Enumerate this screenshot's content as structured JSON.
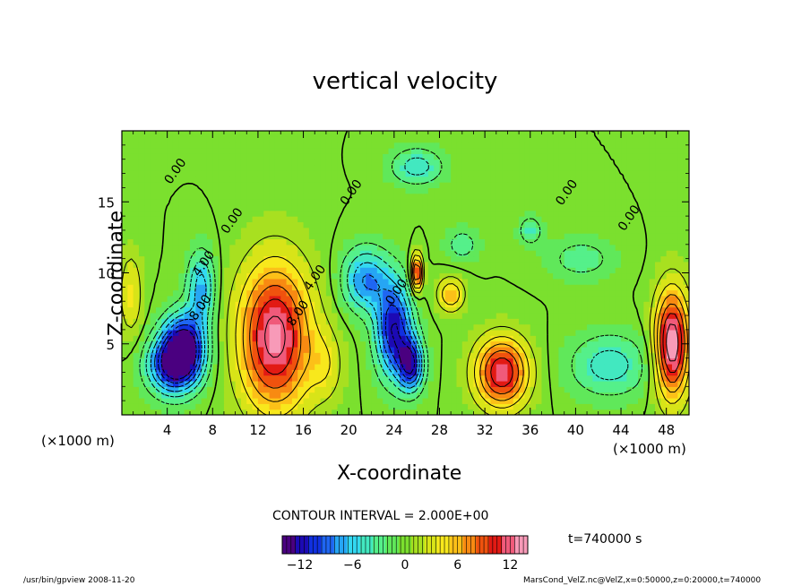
{
  "chart_data": {
    "type": "heatmap",
    "title": "vertical velocity",
    "xlabel": "X-coordinate",
    "ylabel": "Z-coordinate",
    "x_unit_left": "(×1000 m)",
    "x_unit_right": "(×1000 m)",
    "xlim": [
      0,
      50
    ],
    "ylim": [
      0,
      20
    ],
    "x_ticks": [
      4,
      8,
      12,
      16,
      20,
      24,
      28,
      32,
      36,
      40,
      44,
      48
    ],
    "y_ticks": [
      5,
      10,
      15
    ],
    "contour_interval_text": "CONTOUR INTERVAL = 2.000E+00",
    "contour_labels": [
      {
        "x": 5,
        "y": 17,
        "text": "0.00"
      },
      {
        "x": 10,
        "y": 13.5,
        "text": "0.00"
      },
      {
        "x": 20.5,
        "y": 15.5,
        "text": "0.00"
      },
      {
        "x": 39.5,
        "y": 15.5,
        "text": "0.00"
      },
      {
        "x": 45,
        "y": 13.7,
        "text": "0.00"
      },
      {
        "x": 7.5,
        "y": 10.5,
        "text": "4.00"
      },
      {
        "x": 17.3,
        "y": 9.5,
        "text": "4.00"
      },
      {
        "x": 7.2,
        "y": 7.4,
        "text": "8.00"
      },
      {
        "x": 15.8,
        "y": 7.0,
        "text": "8.00"
      },
      {
        "x": 24.5,
        "y": 8.5,
        "text": "0.00"
      }
    ],
    "colorbar": {
      "min": -14,
      "max": 14,
      "ticks": [
        -12,
        -6,
        0,
        6,
        12
      ],
      "colors": [
        "#4a0080",
        "#1c0ab4",
        "#1030e0",
        "#1f66f2",
        "#26a6f4",
        "#33d9f2",
        "#42e8c0",
        "#55f08a",
        "#60e85a",
        "#7be02e",
        "#a8e020",
        "#d8e418",
        "#f8e81c",
        "#fcc018",
        "#f88a12",
        "#f0520e",
        "#e21a14",
        "#f05a7a",
        "#f89ab8"
      ]
    },
    "field_blobs": [
      {
        "x": 13.5,
        "y": 5.5,
        "rx": 3.2,
        "ry": 5.2,
        "amp": 13
      },
      {
        "x": 5.5,
        "y": 5.0,
        "rx": 1.8,
        "ry": 2.2,
        "amp": -12
      },
      {
        "x": 4.5,
        "y": 3.5,
        "rx": 2.2,
        "ry": 2.0,
        "amp": -12
      },
      {
        "x": 7.0,
        "y": 9.0,
        "rx": 1.2,
        "ry": 2.5,
        "amp": -7
      },
      {
        "x": 21.5,
        "y": 9.5,
        "rx": 2.0,
        "ry": 2.2,
        "amp": -8
      },
      {
        "x": 24.0,
        "y": 6.0,
        "rx": 1.6,
        "ry": 3.3,
        "amp": -12
      },
      {
        "x": 25.5,
        "y": 3.5,
        "rx": 1.1,
        "ry": 1.8,
        "amp": -11
      },
      {
        "x": 26.0,
        "y": 10.0,
        "rx": 0.5,
        "ry": 1.3,
        "amp": 12
      },
      {
        "x": 29.0,
        "y": 8.5,
        "rx": 1.2,
        "ry": 1.2,
        "amp": 6
      },
      {
        "x": 33.5,
        "y": 3.0,
        "rx": 2.3,
        "ry": 2.4,
        "amp": 12
      },
      {
        "x": 43.0,
        "y": 3.5,
        "rx": 3.5,
        "ry": 2.2,
        "amp": -5
      },
      {
        "x": 48.5,
        "y": 5.0,
        "rx": 1.5,
        "ry": 3.8,
        "amp": 14
      },
      {
        "x": 26.0,
        "y": 17.5,
        "rx": 2.3,
        "ry": 1.3,
        "amp": -5
      },
      {
        "x": 36.0,
        "y": 13.0,
        "rx": 1.0,
        "ry": 1.0,
        "amp": -4
      },
      {
        "x": 40.5,
        "y": 11.0,
        "rx": 3.0,
        "ry": 1.5,
        "amp": -3
      },
      {
        "x": 30.0,
        "y": 12.0,
        "rx": 1.5,
        "ry": 1.2,
        "amp": -3
      },
      {
        "x": 18.0,
        "y": 3.5,
        "rx": 1.5,
        "ry": 2.5,
        "amp": 3
      },
      {
        "x": 0.8,
        "y": 8.5,
        "rx": 1.0,
        "ry": 3.0,
        "amp": 4
      }
    ]
  },
  "time_label": "t=740000 s",
  "footer_left": "/usr/bin/gpview   2008-11-20",
  "footer_right": "MarsCond_VelZ.nc@VelZ,x=0:50000,z=0:20000,t=740000"
}
